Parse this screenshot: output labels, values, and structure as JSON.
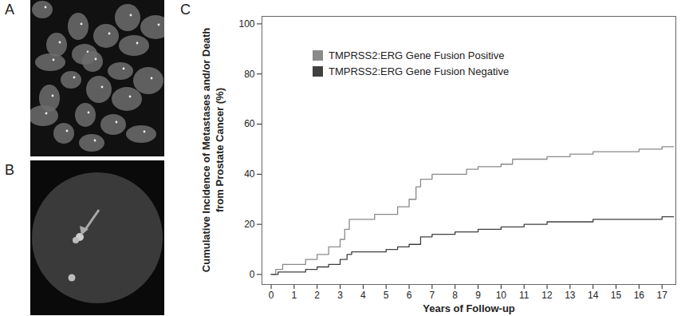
{
  "panel_labels": [
    "A",
    "B",
    "C"
  ],
  "chart_data": {
    "type": "line",
    "xlabel": "Years of Follow-up",
    "ylabel": "Cumulative Incidence of Metastases and/or Death from Prostate Cancer (%)",
    "xlim": [
      -0.4,
      17.6
    ],
    "ylim": [
      -4,
      103
    ],
    "xticks": [
      0,
      1,
      2,
      3,
      4,
      5,
      6,
      7,
      8,
      9,
      10,
      11,
      12,
      13,
      14,
      15,
      16,
      17
    ],
    "yticks": [
      0,
      20,
      40,
      60,
      80,
      100
    ],
    "legend": "top-left",
    "line_style": "step",
    "series": [
      {
        "name": "TMPRSS2:ERG Gene Fusion Positive",
        "color": "#8a8a8a",
        "x": [
          0,
          0.2,
          0.5,
          1,
          1.5,
          2,
          2.5,
          3,
          3.2,
          3.4,
          4,
          4.5,
          5,
          5.5,
          6,
          6.3,
          6.5,
          7,
          8,
          8.5,
          9,
          10,
          10.5,
          11,
          12,
          13,
          14,
          16,
          17,
          17.5
        ],
        "values": [
          0,
          2,
          4,
          4,
          6,
          8,
          11,
          14,
          18,
          22,
          22,
          24,
          24,
          27,
          30,
          35,
          38,
          40,
          40,
          42,
          43,
          44,
          46,
          46,
          47,
          48,
          49,
          50,
          51,
          51
        ]
      },
      {
        "name": "TMPRSS2:ERG Gene Fusion Negative",
        "color": "#404040",
        "x": [
          0,
          0.3,
          1,
          1.5,
          2,
          2.5,
          3,
          3.3,
          3.5,
          4,
          5,
          5.5,
          6,
          6.5,
          7,
          8,
          9,
          10,
          11,
          12,
          13,
          14,
          15,
          17,
          17.5
        ],
        "values": [
          0,
          1,
          1,
          2,
          3,
          4,
          6,
          8,
          9,
          9,
          10,
          11,
          12,
          15,
          16,
          17,
          18,
          19,
          20,
          21,
          21,
          22,
          22,
          23,
          23
        ]
      }
    ]
  }
}
